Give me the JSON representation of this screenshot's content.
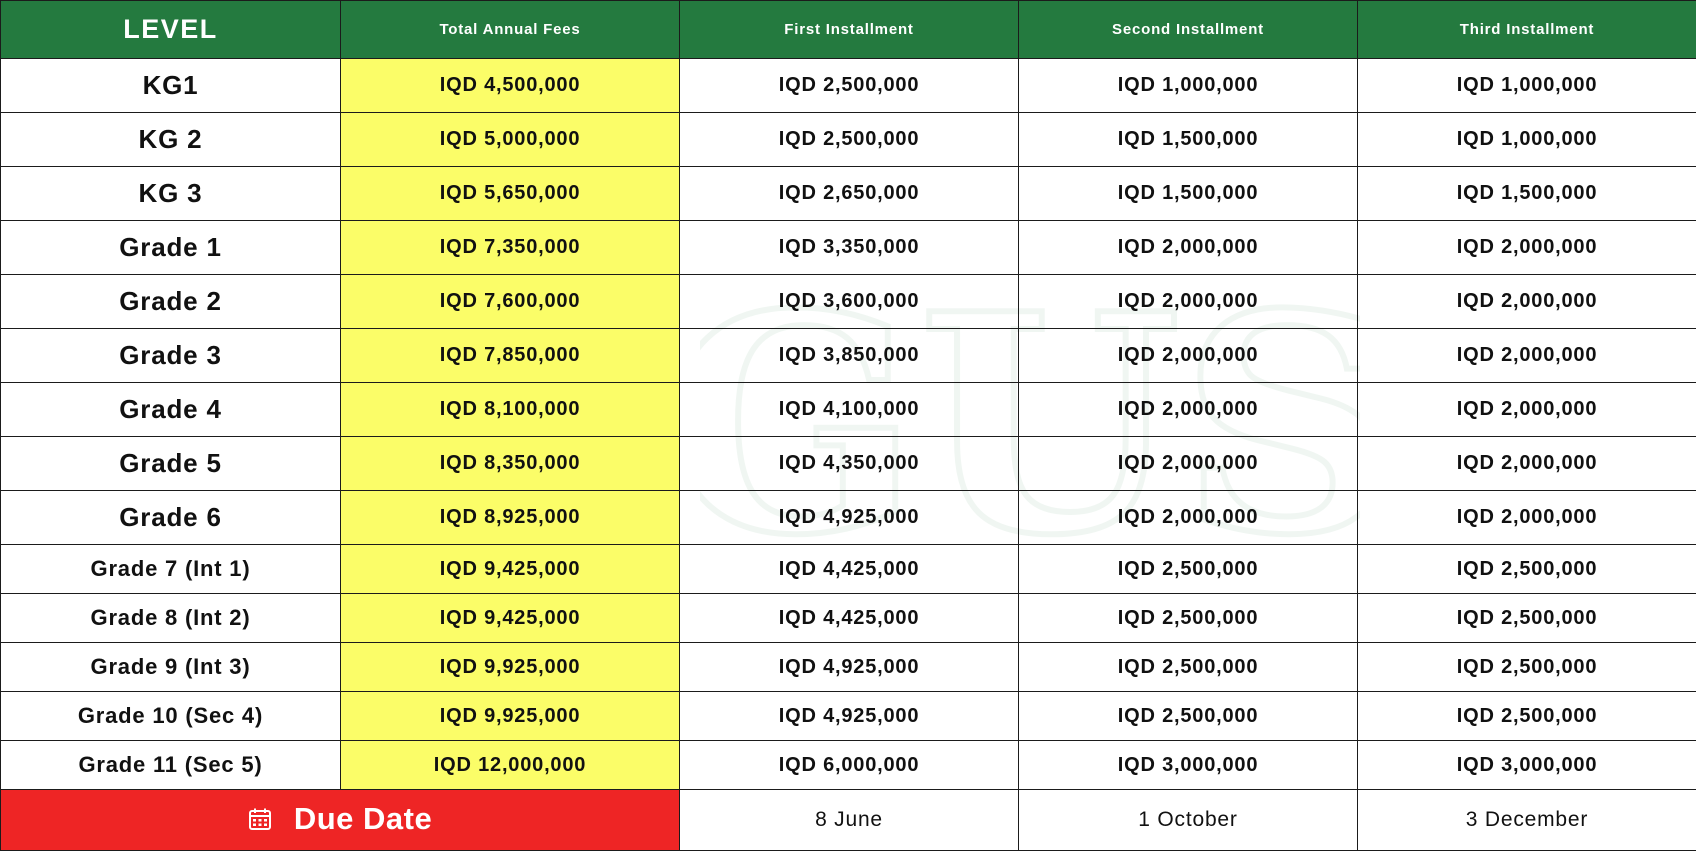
{
  "watermark_text": "GUS",
  "colors": {
    "header_bg": "#247a3f",
    "total_bg": "#fbfd68",
    "due_bg": "#ee2525"
  },
  "header": {
    "level": "LEVEL",
    "total": "Total Annual Fees",
    "first": "First Installment",
    "second": "Second Installment",
    "third": "Third Installment"
  },
  "rows": [
    {
      "level": "KG1",
      "total": "IQD 4,500,000",
      "first": "IQD 2,500,000",
      "second": "IQD 1,000,000",
      "third": "IQD 1,000,000"
    },
    {
      "level": "KG 2",
      "total": "IQD 5,000,000",
      "first": "IQD 2,500,000",
      "second": "IQD 1,500,000",
      "third": "IQD 1,000,000"
    },
    {
      "level": "KG 3",
      "total": "IQD 5,650,000",
      "first": "IQD 2,650,000",
      "second": "IQD 1,500,000",
      "third": "IQD 1,500,000"
    },
    {
      "level": "Grade 1",
      "total": "IQD 7,350,000",
      "first": "IQD 3,350,000",
      "second": "IQD 2,000,000",
      "third": "IQD 2,000,000"
    },
    {
      "level": "Grade 2",
      "total": "IQD 7,600,000",
      "first": "IQD 3,600,000",
      "second": "IQD 2,000,000",
      "third": "IQD 2,000,000"
    },
    {
      "level": "Grade 3",
      "total": "IQD 7,850,000",
      "first": "IQD 3,850,000",
      "second": "IQD 2,000,000",
      "third": "IQD 2,000,000"
    },
    {
      "level": "Grade 4",
      "total": "IQD 8,100,000",
      "first": "IQD 4,100,000",
      "second": "IQD 2,000,000",
      "third": "IQD 2,000,000"
    },
    {
      "level": "Grade 5",
      "total": "IQD 8,350,000",
      "first": "IQD 4,350,000",
      "second": "IQD 2,000,000",
      "third": "IQD 2,000,000"
    },
    {
      "level": "Grade 6",
      "total": "IQD 8,925,000",
      "first": "IQD 4,925,000",
      "second": "IQD 2,000,000",
      "third": "IQD 2,000,000"
    },
    {
      "level": "Grade 7 (Int 1)",
      "total": "IQD 9,425,000",
      "first": "IQD 4,425,000",
      "second": "IQD 2,500,000",
      "third": "IQD 2,500,000"
    },
    {
      "level": "Grade 8 (Int 2)",
      "total": "IQD 9,425,000",
      "first": "IQD 4,425,000",
      "second": "IQD 2,500,000",
      "third": "IQD 2,500,000"
    },
    {
      "level": "Grade 9 (Int 3)",
      "total": "IQD 9,925,000",
      "first": "IQD 4,925,000",
      "second": "IQD 2,500,000",
      "third": "IQD 2,500,000"
    },
    {
      "level": "Grade 10 (Sec 4)",
      "total": "IQD 9,925,000",
      "first": "IQD 4,925,000",
      "second": "IQD 2,500,000",
      "third": "IQD 2,500,000"
    },
    {
      "level": "Grade 11 (Sec 5)",
      "total": "IQD 12,000,000",
      "first": "IQD 6,000,000",
      "second": "IQD 3,000,000",
      "third": "IQD 3,000,000"
    }
  ],
  "due": {
    "icon": "calendar-icon",
    "label": "Due Date",
    "first": "8 June",
    "second": "1 October",
    "third": "3 December"
  }
}
